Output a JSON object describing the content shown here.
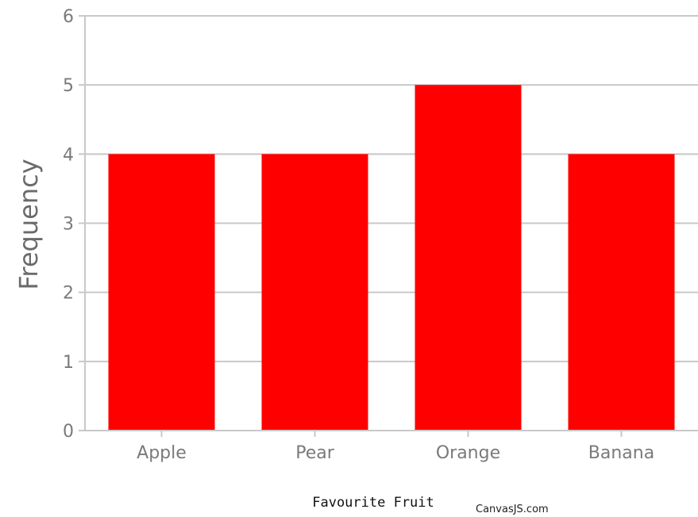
{
  "chart_data": {
    "type": "bar",
    "title": "",
    "categories": [
      "Apple",
      "Pear",
      "Orange",
      "Banana"
    ],
    "values": [
      4,
      4,
      5,
      4
    ],
    "xlabel": "Favourite Fruit",
    "ylabel": "Frequency",
    "ylim": [
      0,
      6
    ],
    "yticks": [
      0,
      1,
      2,
      3,
      4,
      5,
      6
    ],
    "grid": true,
    "legend": "none",
    "bar_color": "#ff0000",
    "grid_color": "#c8c8c8"
  },
  "credit": "CanvasJS.com"
}
